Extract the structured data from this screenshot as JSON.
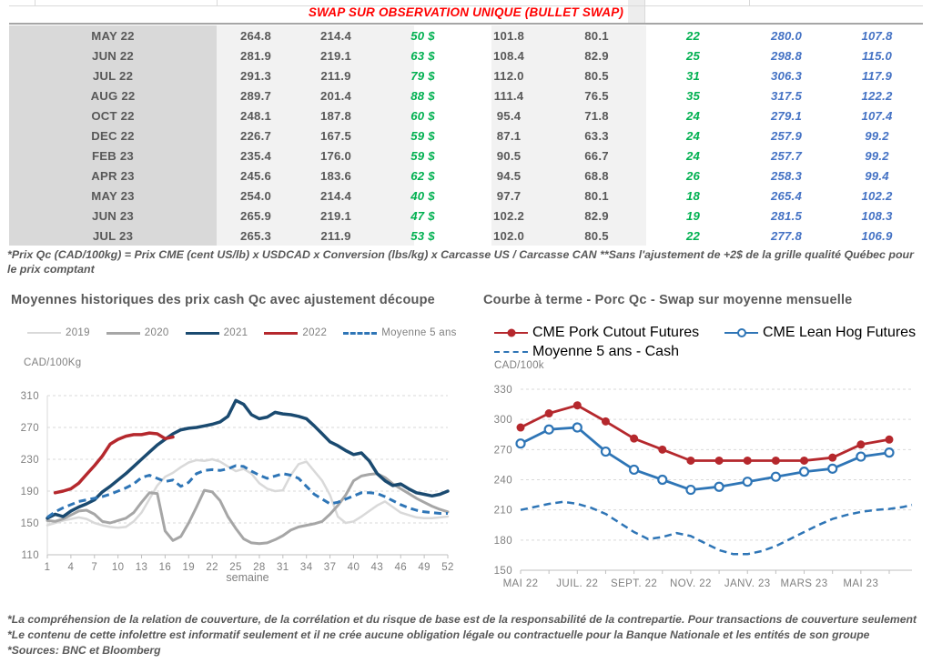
{
  "table": {
    "title": "SWAP SUR OBSERVATION UNIQUE (BULLET SWAP)",
    "rows": [
      [
        "MAY 22",
        "264.8",
        "214.4",
        "50 $",
        "101.8",
        "80.1",
        "22",
        "280.0",
        "107.8"
      ],
      [
        "JUN 22",
        "281.9",
        "219.1",
        "63 $",
        "108.4",
        "82.9",
        "25",
        "298.8",
        "115.0"
      ],
      [
        "JUL 22",
        "291.3",
        "211.9",
        "79 $",
        "112.0",
        "80.5",
        "31",
        "306.3",
        "117.9"
      ],
      [
        "AUG 22",
        "289.7",
        "201.4",
        "88 $",
        "111.4",
        "76.5",
        "35",
        "317.5",
        "122.2"
      ],
      [
        "OCT 22",
        "248.1",
        "187.8",
        "60 $",
        "95.4",
        "71.8",
        "24",
        "279.1",
        "107.4"
      ],
      [
        "DEC 22",
        "226.7",
        "167.5",
        "59 $",
        "87.1",
        "63.3",
        "24",
        "257.9",
        "99.2"
      ],
      [
        "FEB 23",
        "235.4",
        "176.0",
        "59 $",
        "90.5",
        "66.7",
        "24",
        "257.7",
        "99.2"
      ],
      [
        "APR 23",
        "245.6",
        "183.6",
        "62 $",
        "94.5",
        "68.8",
        "26",
        "258.3",
        "99.4"
      ],
      [
        "MAY 23",
        "254.0",
        "214.4",
        "40 $",
        "97.7",
        "80.1",
        "18",
        "265.4",
        "102.2"
      ],
      [
        "JUN 23",
        "265.9",
        "219.1",
        "47 $",
        "102.2",
        "82.9",
        "19",
        "281.5",
        "108.3"
      ],
      [
        "JUL 23",
        "265.3",
        "211.9",
        "53 $",
        "102.0",
        "80.5",
        "22",
        "277.8",
        "106.9"
      ]
    ],
    "footnote": "*Prix Qc (CAD/100kg) = Prix CME (cent US/lb) x USDCAD x Conversion (lbs/kg) x Carcasse US / Carcasse CAN **Sans l'ajustement de +2$ de la grille qualité Québec pour le prix comptant"
  },
  "colors": {
    "title_red": "#ff0000",
    "green": "#00b050",
    "table_blue": "#4472c4",
    "text_gray": "#595959",
    "navy_2021": "#1a4a70",
    "red_2022": "#b5282d",
    "steel_blue": "#2e75b6",
    "gray_2020": "#a6a6a6",
    "lightgray_2019": "#d9d9d9"
  },
  "chart_data": [
    {
      "type": "line",
      "title": "Moyennes historiques des prix cash Qc avec ajustement découpe",
      "ylabel": "CAD/100Kg",
      "xlabel": "semaine",
      "ylim": [
        110,
        310
      ],
      "xlim": [
        1,
        52
      ],
      "yticks": [
        110,
        150,
        190,
        230,
        270,
        310
      ],
      "xticks": [
        1,
        4,
        7,
        10,
        13,
        16,
        19,
        22,
        25,
        28,
        31,
        34,
        37,
        40,
        43,
        46,
        49,
        52
      ],
      "grid": "dashed-horizontal",
      "legend_position": "top",
      "series": [
        {
          "name": "2019",
          "color": "#d9d9d9",
          "width": 2.5,
          "x_start": 1,
          "values": [
            147,
            150,
            153,
            155,
            157,
            155,
            150,
            147,
            145,
            144,
            145,
            152,
            163,
            180,
            197,
            208,
            213,
            220,
            226,
            229,
            228,
            230,
            227,
            221,
            215,
            218,
            212,
            200,
            193,
            190,
            191,
            210,
            224,
            227,
            215,
            203,
            185,
            158,
            150,
            152,
            158,
            165,
            172,
            177,
            170,
            163,
            160,
            157,
            156,
            156,
            157,
            158
          ]
        },
        {
          "name": "2020",
          "color": "#a6a6a6",
          "width": 3,
          "x_start": 1,
          "values": [
            153,
            152,
            155,
            160,
            165,
            166,
            161,
            152,
            150,
            153,
            156,
            163,
            176,
            188,
            187,
            140,
            128,
            133,
            150,
            170,
            191,
            189,
            178,
            158,
            143,
            130,
            125,
            124,
            125,
            129,
            134,
            141,
            145,
            147,
            149,
            152,
            161,
            172,
            185,
            203,
            209,
            211,
            212,
            207,
            199,
            193,
            187,
            181,
            176,
            171,
            167,
            164
          ]
        },
        {
          "name": "2021",
          "color": "#1a4a70",
          "width": 3.5,
          "x_start": 1,
          "values": [
            156,
            161,
            158,
            165,
            170,
            174,
            179,
            189,
            196,
            204,
            212,
            221,
            230,
            239,
            248,
            255,
            262,
            267,
            269,
            270,
            272,
            274,
            277,
            284,
            304,
            299,
            286,
            281,
            283,
            289,
            287,
            286,
            284,
            281,
            272,
            262,
            252,
            247,
            241,
            236,
            238,
            228,
            212,
            203,
            197,
            199,
            193,
            188,
            186,
            184,
            186,
            190
          ]
        },
        {
          "name": "2022",
          "color": "#b5282d",
          "width": 3.5,
          "x_start": 2,
          "values": [
            188,
            190,
            193,
            200,
            211,
            222,
            234,
            249,
            255,
            259,
            261,
            261,
            263,
            262,
            256,
            258
          ]
        },
        {
          "name": "Moyenne 5 ans",
          "color": "#2e75b6",
          "width": 3,
          "dash": true,
          "x_start": 1,
          "values": [
            157,
            164,
            169,
            173,
            177,
            179,
            181,
            183,
            186,
            190,
            194,
            199,
            207,
            210,
            206,
            202,
            204,
            196,
            201,
            212,
            216,
            217,
            216,
            218,
            222,
            221,
            215,
            210,
            206,
            209,
            212,
            210,
            206,
            196,
            186,
            180,
            174,
            176,
            180,
            184,
            188,
            188,
            187,
            183,
            178,
            173,
            169,
            166,
            164,
            163,
            162,
            162
          ]
        }
      ]
    },
    {
      "type": "line",
      "title": "Courbe à terme - Porc Qc - Swap sur moyenne mensuelle",
      "ylabel": "CAD/100k",
      "xlabel": "",
      "ylim": [
        150,
        330
      ],
      "xlim": [
        0,
        13
      ],
      "yticks": [
        150,
        180,
        210,
        240,
        270,
        300,
        330
      ],
      "xtick_labels": [
        "MAI 22",
        "JUIL. 22",
        "SEPT. 22",
        "NOV. 22",
        "JANV. 23",
        "MARS 23",
        "MAI 23"
      ],
      "xtick_positions": [
        0,
        2,
        4,
        6,
        8,
        10,
        12
      ],
      "grid": "dashed-horizontal",
      "legend_position": "top",
      "series": [
        {
          "name": "CME Pork Cutout Futures",
          "color": "#b5282d",
          "width": 2.8,
          "marker": "filled",
          "x_start": 0,
          "values": [
            292,
            306,
            314,
            298,
            281,
            270,
            259,
            259,
            259,
            259,
            259,
            262,
            275,
            280
          ]
        },
        {
          "name": "CME Lean Hog Futures",
          "color": "#2e75b6",
          "width": 2.8,
          "marker": "open",
          "x_start": 0,
          "values": [
            276,
            290,
            292,
            268,
            250,
            240,
            230,
            233,
            238,
            243,
            248,
            251,
            263,
            267
          ]
        },
        {
          "name": "Moyenne 5 ans - Cash",
          "color": "#2e75b6",
          "width": 2.5,
          "dash": true,
          "x": [
            0,
            0.5,
            1,
            1.5,
            2,
            2.5,
            3,
            3.5,
            4,
            4.5,
            5,
            5.5,
            6,
            6.5,
            7,
            7.5,
            8,
            8.5,
            9,
            9.5,
            10,
            10.5,
            11,
            11.5,
            12,
            12.5,
            13,
            13.5,
            13.8
          ],
          "values": [
            210,
            213,
            216,
            218,
            216,
            212,
            206,
            197,
            188,
            181,
            183,
            187,
            184,
            177,
            170,
            166,
            166,
            169,
            174,
            181,
            188,
            195,
            201,
            205,
            208,
            210,
            211,
            213,
            215
          ]
        }
      ]
    }
  ],
  "footer": {
    "lines": [
      "*La compréhension de la relation de couverture, de la corrélation et du risque de base est de la responsabilité de la contrepartie. Pour transactions de couverture seulement",
      "*Le contenu de cette infolettre est informatif seulement et il ne crée aucune obligation légale ou contractuelle pour la Banque Nationale et les entités de son groupe",
      "*Sources: BNC et Bloomberg"
    ]
  }
}
